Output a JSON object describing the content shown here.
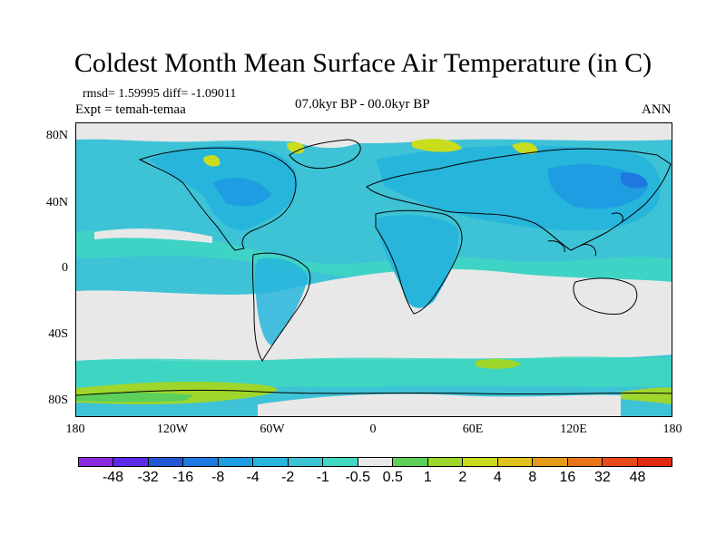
{
  "title": "Coldest Month Mean Surface Air Temperature (in C)",
  "stats": "rmsd= 1.59995 diff= -1.09011",
  "experiment": "Expt = temah-temaa",
  "period": "07.0kyr BP - 00.0kyr BP",
  "season": "ANN",
  "lat_labels": [
    "80N",
    "40N",
    "0",
    "40S",
    "80S"
  ],
  "lon_labels": [
    "180",
    "120W",
    "60W",
    "0",
    "60E",
    "120E",
    "180"
  ],
  "colorbar": {
    "labels": [
      "-48",
      "-32",
      "-16",
      "-8",
      "-4",
      "-2",
      "-1",
      "-0.5",
      "0.5",
      "1",
      "2",
      "4",
      "8",
      "16",
      "32",
      "48"
    ],
    "colors": [
      "#8a2be2",
      "#5a2be8",
      "#2457d6",
      "#1e78e0",
      "#1f9de2",
      "#27b5dc",
      "#3ec3d6",
      "#40d8c0",
      "#e8e8e8",
      "#5cd05a",
      "#9fd62c",
      "#c9dc1e",
      "#e0c21a",
      "#e49a18",
      "#e8741a",
      "#e84a1a",
      "#e02a10"
    ]
  },
  "colors": {
    "ocean_base": "#3ec3d6",
    "near_zero": "#e8e8e8",
    "land_cool": "#1f9de2",
    "warm": "#9fd62c"
  }
}
